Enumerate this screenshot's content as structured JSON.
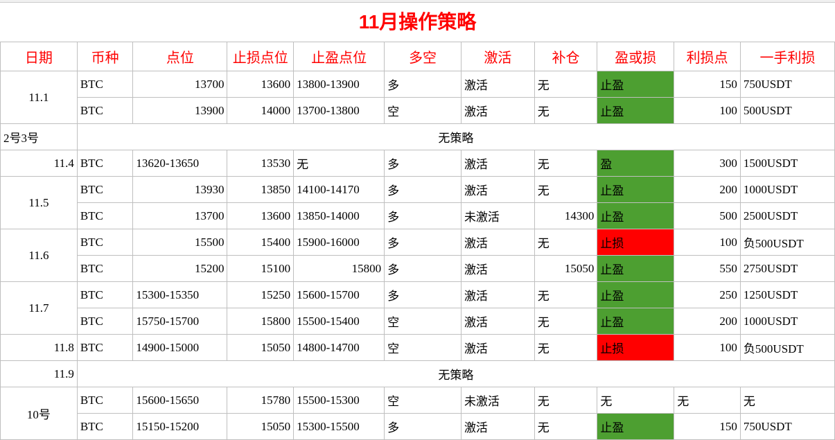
{
  "title": "11月操作策略",
  "headers": [
    "日期",
    "币种",
    "点位",
    "止损点位",
    "止盈点位",
    "多空",
    "激活",
    "补仓",
    "盈或损",
    "利损点",
    "一手利损"
  ],
  "colors": {
    "green": "#4d9f31",
    "red": "#ff0000",
    "header_text": "#ff0000",
    "border": "#bfbfbf"
  },
  "section1_date": "11.1",
  "r1": {
    "coin": "BTC",
    "point": "13700",
    "sl": "13600",
    "tp": "13800-13900",
    "dir": "多",
    "act": "激活",
    "add": "无",
    "pl": "止盈",
    "pts": "150",
    "hand": "750USDT"
  },
  "r2": {
    "coin": "BTC",
    "point": "13900",
    "sl": "14000",
    "tp": "13700-13800",
    "dir": "空",
    "act": "激活",
    "add": "无",
    "pl": "止盈",
    "pts": "100",
    "hand": "500USDT"
  },
  "no_strategy_a_date": "2号3号",
  "no_strategy_text": "无策略",
  "r3_date": "11.4",
  "r3": {
    "coin": "BTC",
    "point": "13620-13650",
    "sl": "13530",
    "tp": "无",
    "dir": "多",
    "act": "激活",
    "add": "无",
    "pl": "盈",
    "pts": "300",
    "hand": "1500USDT"
  },
  "section5_date": "11.5",
  "r4": {
    "coin": "BTC",
    "point": "13930",
    "sl": "13850",
    "tp": "14100-14170",
    "dir": "多",
    "act": "激活",
    "add": "无",
    "pl": "止盈",
    "pts": "200",
    "hand": "1000USDT"
  },
  "r5": {
    "coin": "BTC",
    "point": "13700",
    "sl": "13600",
    "tp": "13850-14000",
    "dir": "多",
    "act": "未激活",
    "add": "14300",
    "pl": "止盈",
    "pts": "500",
    "hand": "2500USDT"
  },
  "section6_date": "11.6",
  "r6": {
    "coin": "BTC",
    "point": "15500",
    "sl": "15400",
    "tp": "15900-16000",
    "dir": "多",
    "act": "激活",
    "add": "无",
    "pl": "止损",
    "pts": "100",
    "hand": "负500USDT"
  },
  "r7": {
    "coin": "BTC",
    "point": "15200",
    "sl": "15100",
    "tp": "15800",
    "dir": "多",
    "act": "激活",
    "add": "15050",
    "pl": "止盈",
    "pts": "550",
    "hand": "2750USDT"
  },
  "section7_date": "11.7",
  "r8": {
    "coin": "BTC",
    "point": "15300-15350",
    "sl": "15250",
    "tp": "15600-15700",
    "dir": "多",
    "act": "激活",
    "add": "无",
    "pl": "止盈",
    "pts": "250",
    "hand": "1250USDT"
  },
  "r9": {
    "coin": "BTC",
    "point": "15750-15700",
    "sl": "15800",
    "tp": "15500-15400",
    "dir": "空",
    "act": "激活",
    "add": "无",
    "pl": "止盈",
    "pts": "200",
    "hand": "1000USDT"
  },
  "r10_date": "11.8",
  "r10": {
    "coin": "BTC",
    "point": "14900-15000",
    "sl": "15050",
    "tp": "14800-14700",
    "dir": "空",
    "act": "激活",
    "add": "无",
    "pl": "止损",
    "pts": "100",
    "hand": "负500USDT"
  },
  "no_strategy_b_date": "11.9",
  "section10_date": "10号",
  "r11": {
    "coin": "BTC",
    "point": "15600-15650",
    "sl": "15780",
    "tp": "15500-15300",
    "dir": "空",
    "act": "未激活",
    "add": "无",
    "pl": "无",
    "pts": "无",
    "hand": "无"
  },
  "r12": {
    "coin": "BTC",
    "point": "15150-15200",
    "sl": "15050",
    "tp": "15300-15500",
    "dir": "多",
    "act": "激活",
    "add": "无",
    "pl": "止盈",
    "pts": "150",
    "hand": "750USDT"
  }
}
